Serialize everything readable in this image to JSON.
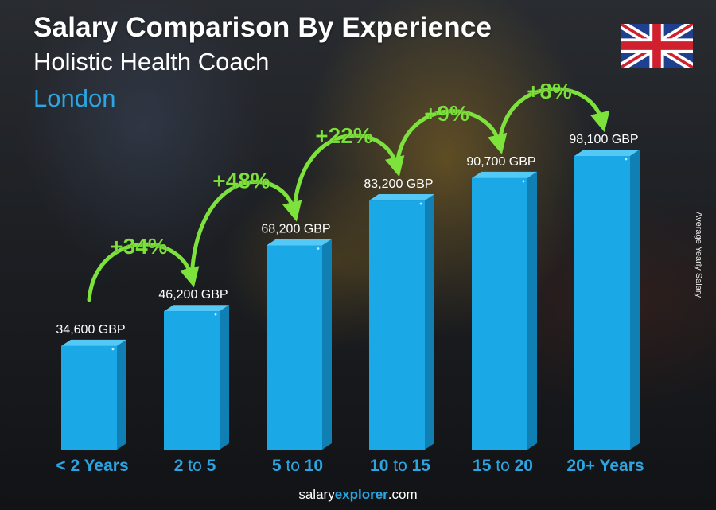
{
  "header": {
    "title": "Salary Comparison By Experience",
    "job": "Holistic Health Coach",
    "city": "London"
  },
  "side_label": "Average Yearly Salary",
  "footer": {
    "brand_a": "salary",
    "brand_b": "explorer",
    "brand_c": ".com"
  },
  "flag_icon": "uk-flag-icon",
  "colors": {
    "bar_front": "#1ba8e6",
    "bar_side": "#0f7fb4",
    "bar_top": "#55c9f5",
    "increase_green": "#7ee23c",
    "city_blue": "#29a6e3"
  },
  "chart_data": {
    "type": "bar",
    "categories": [
      "< 2 Years",
      "2 to 5",
      "5 to 10",
      "10 to 15",
      "15 to 20",
      "20+ Years"
    ],
    "category_parts": [
      [
        "< 2 Years",
        "",
        ""
      ],
      [
        "2",
        " to ",
        "5"
      ],
      [
        "5",
        " to ",
        "10"
      ],
      [
        "10",
        " to ",
        "15"
      ],
      [
        "15",
        " to ",
        "20"
      ],
      [
        "20+ Years",
        "",
        ""
      ]
    ],
    "values": [
      34600,
      46200,
      68200,
      83200,
      90700,
      98100
    ],
    "value_labels": [
      "34,600 GBP",
      "46,200 GBP",
      "68,200 GBP",
      "83,200 GBP",
      "90,700 GBP",
      "98,100 GBP"
    ],
    "increases": [
      "+34%",
      "+48%",
      "+22%",
      "+9%",
      "+8%"
    ],
    "unit": "GBP",
    "ylabel": "Average Yearly Salary",
    "ylim": [
      0,
      98100
    ]
  }
}
